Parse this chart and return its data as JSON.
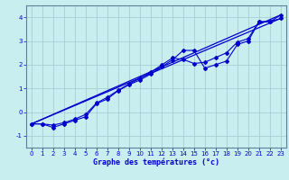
{
  "background_color": "#c8eef0",
  "grid_color": "#a0c8d0",
  "line_color": "#0000cd",
  "xlabel": "Graphe des températures (°c)",
  "xlim": [
    -0.5,
    23.5
  ],
  "ylim": [
    -1.5,
    4.5
  ],
  "xticks": [
    0,
    1,
    2,
    3,
    4,
    5,
    6,
    7,
    8,
    9,
    10,
    11,
    12,
    13,
    14,
    15,
    16,
    17,
    18,
    19,
    20,
    21,
    22,
    23
  ],
  "yticks": [
    -1,
    0,
    1,
    2,
    3,
    4
  ],
  "ref_line1_x": [
    0,
    23
  ],
  "ref_line1_y": [
    -0.5,
    4.1
  ],
  "ref_line2_x": [
    0,
    23
  ],
  "ref_line2_y": [
    -0.5,
    3.95
  ],
  "line1_x": [
    0,
    1,
    2,
    3,
    4,
    5,
    6,
    7,
    8,
    9,
    10,
    11,
    12,
    13,
    14,
    15,
    16,
    17,
    18,
    19,
    20,
    21,
    22,
    23
  ],
  "line1_y": [
    -0.5,
    -0.5,
    -0.65,
    -0.5,
    -0.35,
    -0.2,
    0.35,
    0.55,
    0.9,
    1.15,
    1.35,
    1.6,
    1.9,
    2.2,
    2.6,
    2.6,
    1.85,
    2.0,
    2.15,
    2.85,
    3.0,
    3.8,
    3.8,
    4.1
  ],
  "line2_x": [
    0,
    1,
    2,
    3,
    4,
    5,
    6,
    7,
    8,
    9,
    10,
    11,
    12,
    13,
    14,
    15,
    16,
    17,
    18,
    19,
    20,
    21,
    22,
    23
  ],
  "line2_y": [
    -0.5,
    -0.5,
    -0.55,
    -0.45,
    -0.3,
    -0.1,
    0.38,
    0.62,
    0.92,
    1.18,
    1.42,
    1.68,
    1.98,
    2.28,
    2.22,
    2.05,
    2.1,
    2.3,
    2.5,
    2.95,
    3.1,
    3.82,
    3.82,
    3.95
  ]
}
